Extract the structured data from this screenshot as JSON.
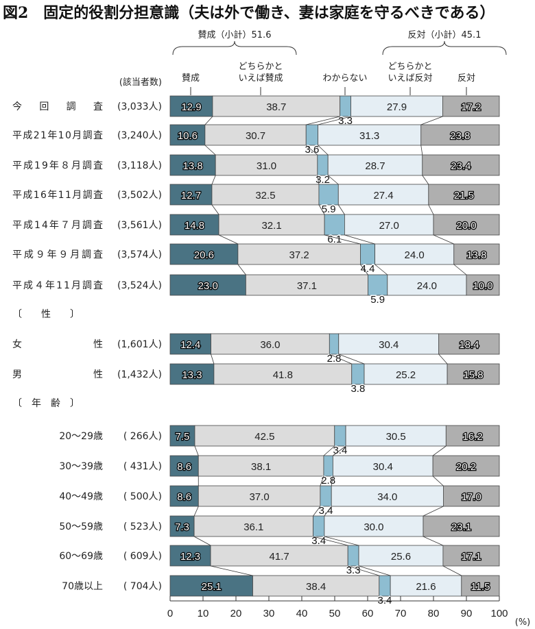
{
  "chart_data": {
    "type": "bar",
    "stacked": true,
    "orientation": "horizontal",
    "title": "図2　固定的役割分担意識（夫は外で働き、妻は家庭を守るべきである）",
    "subtotals": [
      {
        "label": "賛成（小計）51.6",
        "value": 51.6
      },
      {
        "label": "反対（小計）45.1",
        "value": 45.1
      }
    ],
    "count_header": "(該当者数)",
    "series_names": [
      "賛成",
      "どちらかと\nいえば賛成",
      "わからない",
      "どちらかと\nいえば反対",
      "反対"
    ],
    "colors": [
      "#4a7383",
      "#dcdcdc",
      "#8ebdd1",
      "#e5eef4",
      "#afafaf"
    ],
    "sections": [
      {
        "heading": "",
        "rows": [
          {
            "name": "今　回　調　査",
            "count": "(3,033人)",
            "values": [
              12.9,
              38.7,
              3.3,
              27.9,
              17.2
            ]
          },
          {
            "name": "平成21年10月調査",
            "count": "(3,240人)",
            "values": [
              10.6,
              30.7,
              3.6,
              31.3,
              23.8
            ]
          },
          {
            "name": "平成19年８月調査",
            "count": "(3,118人)",
            "values": [
              13.8,
              31.0,
              3.2,
              28.7,
              23.4
            ]
          },
          {
            "name": "平成16年11月調査",
            "count": "(3,502人)",
            "values": [
              12.7,
              32.5,
              5.9,
              27.4,
              21.5
            ]
          },
          {
            "name": "平成14年７月調査",
            "count": "(3,561人)",
            "values": [
              14.8,
              32.1,
              6.1,
              27.0,
              20.0
            ]
          },
          {
            "name": "平成９年９月調査",
            "count": "(3,574人)",
            "values": [
              20.6,
              37.2,
              4.4,
              24.0,
              13.8
            ]
          },
          {
            "name": "平成４年11月調査",
            "count": "(3,524人)",
            "values": [
              23.0,
              37.1,
              5.9,
              24.0,
              10.0
            ]
          }
        ]
      },
      {
        "heading": "〔　　性　　〕",
        "rows": [
          {
            "name": "女　　　　　性",
            "count": "(1,601人)",
            "values": [
              12.4,
              36.0,
              2.8,
              30.4,
              18.4
            ]
          },
          {
            "name": "男　　　　　性",
            "count": "(1,432人)",
            "values": [
              13.3,
              41.8,
              3.8,
              25.2,
              15.8
            ]
          }
        ]
      },
      {
        "heading": "〔　年　齢　〕",
        "rows": [
          {
            "name": "20～29歳",
            "count": "(  266人)",
            "values": [
              7.5,
              42.5,
              3.4,
              30.5,
              16.2
            ]
          },
          {
            "name": "30～39歳",
            "count": "(  431人)",
            "values": [
              8.6,
              38.1,
              2.8,
              30.4,
              20.2
            ]
          },
          {
            "name": "40～49歳",
            "count": "(  500人)",
            "values": [
              8.6,
              37.0,
              3.4,
              34.0,
              17.0
            ]
          },
          {
            "name": "50～59歳",
            "count": "(  523人)",
            "values": [
              7.3,
              36.1,
              3.4,
              30.0,
              23.1
            ]
          },
          {
            "name": "60～69歳",
            "count": "(  609人)",
            "values": [
              12.3,
              41.7,
              3.3,
              25.6,
              17.1
            ]
          },
          {
            "name": "70歳以上",
            "count": "(  704人)",
            "values": [
              25.1,
              38.4,
              3.4,
              21.6,
              11.5
            ]
          }
        ]
      }
    ],
    "xlim": [
      0,
      100
    ],
    "xticks": [
      "0",
      "10",
      "20",
      "30",
      "40",
      "50",
      "60",
      "70",
      "80",
      "90",
      "100"
    ],
    "xunit": "(%)",
    "grid": false,
    "legend": "top"
  }
}
